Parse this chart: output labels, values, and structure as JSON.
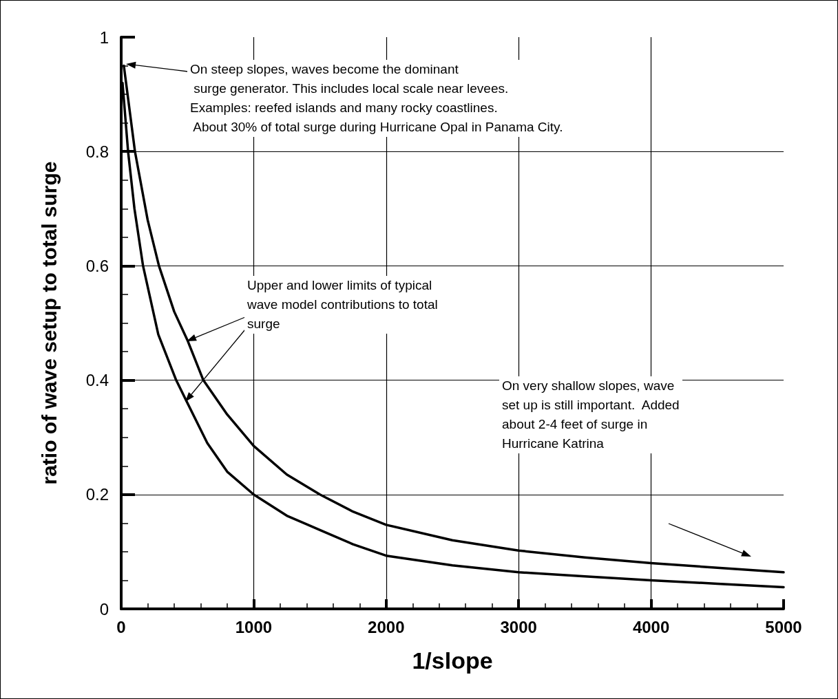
{
  "chart_data": {
    "type": "line",
    "xlabel": "1/slope",
    "ylabel": "ratio of wave setup to total surge",
    "xlim": [
      0,
      5000
    ],
    "xticks": [
      0,
      1000,
      2000,
      3000,
      4000,
      5000
    ],
    "ylim": [
      0,
      1
    ],
    "yticks": [
      0,
      0.2,
      0.4,
      0.6,
      0.8,
      1
    ],
    "grid": true,
    "marker": "none",
    "line_style": "solid",
    "series": [
      {
        "color": "#000000",
        "x": [
          20,
          104,
          200,
          285,
          400,
          500,
          620,
          800,
          1000,
          1250,
          1500,
          1750,
          2000,
          2500,
          3000,
          3500,
          4000,
          4500,
          5000
        ],
        "values": [
          0.95,
          0.8,
          0.68,
          0.6,
          0.52,
          0.47,
          0.4,
          0.34,
          0.285,
          0.235,
          0.2,
          0.17,
          0.147,
          0.12,
          0.102,
          0.09,
          0.08,
          0.072,
          0.064
        ]
      },
      {
        "color": "#000000",
        "x": [
          10,
          52,
          100,
          165,
          280,
          415,
          500,
          650,
          800,
          1000,
          1250,
          1500,
          1750,
          2000,
          2500,
          3000,
          3500,
          4000,
          4500,
          5000
        ],
        "values": [
          0.92,
          0.8,
          0.7,
          0.6,
          0.48,
          0.4,
          0.36,
          0.29,
          0.24,
          0.2,
          0.163,
          0.138,
          0.113,
          0.093,
          0.076,
          0.064,
          0.057,
          0.05,
          0.044,
          0.038
        ]
      }
    ],
    "annotations": [
      "On steep slopes, waves become the dominant\n surge generator. This includes local scale near levees.\nExamples: reefed islands and many rocky coastlines.\n About 30% of total surge during Hurricane Opal in Panama City.",
      "Upper and lower limits of typical\nwave model contributions to total\nsurge",
      "On very shallow slopes, wave\nset up is still important.  Added\nabout 2-4 feet of surge in\nHurricane Katrina"
    ]
  }
}
